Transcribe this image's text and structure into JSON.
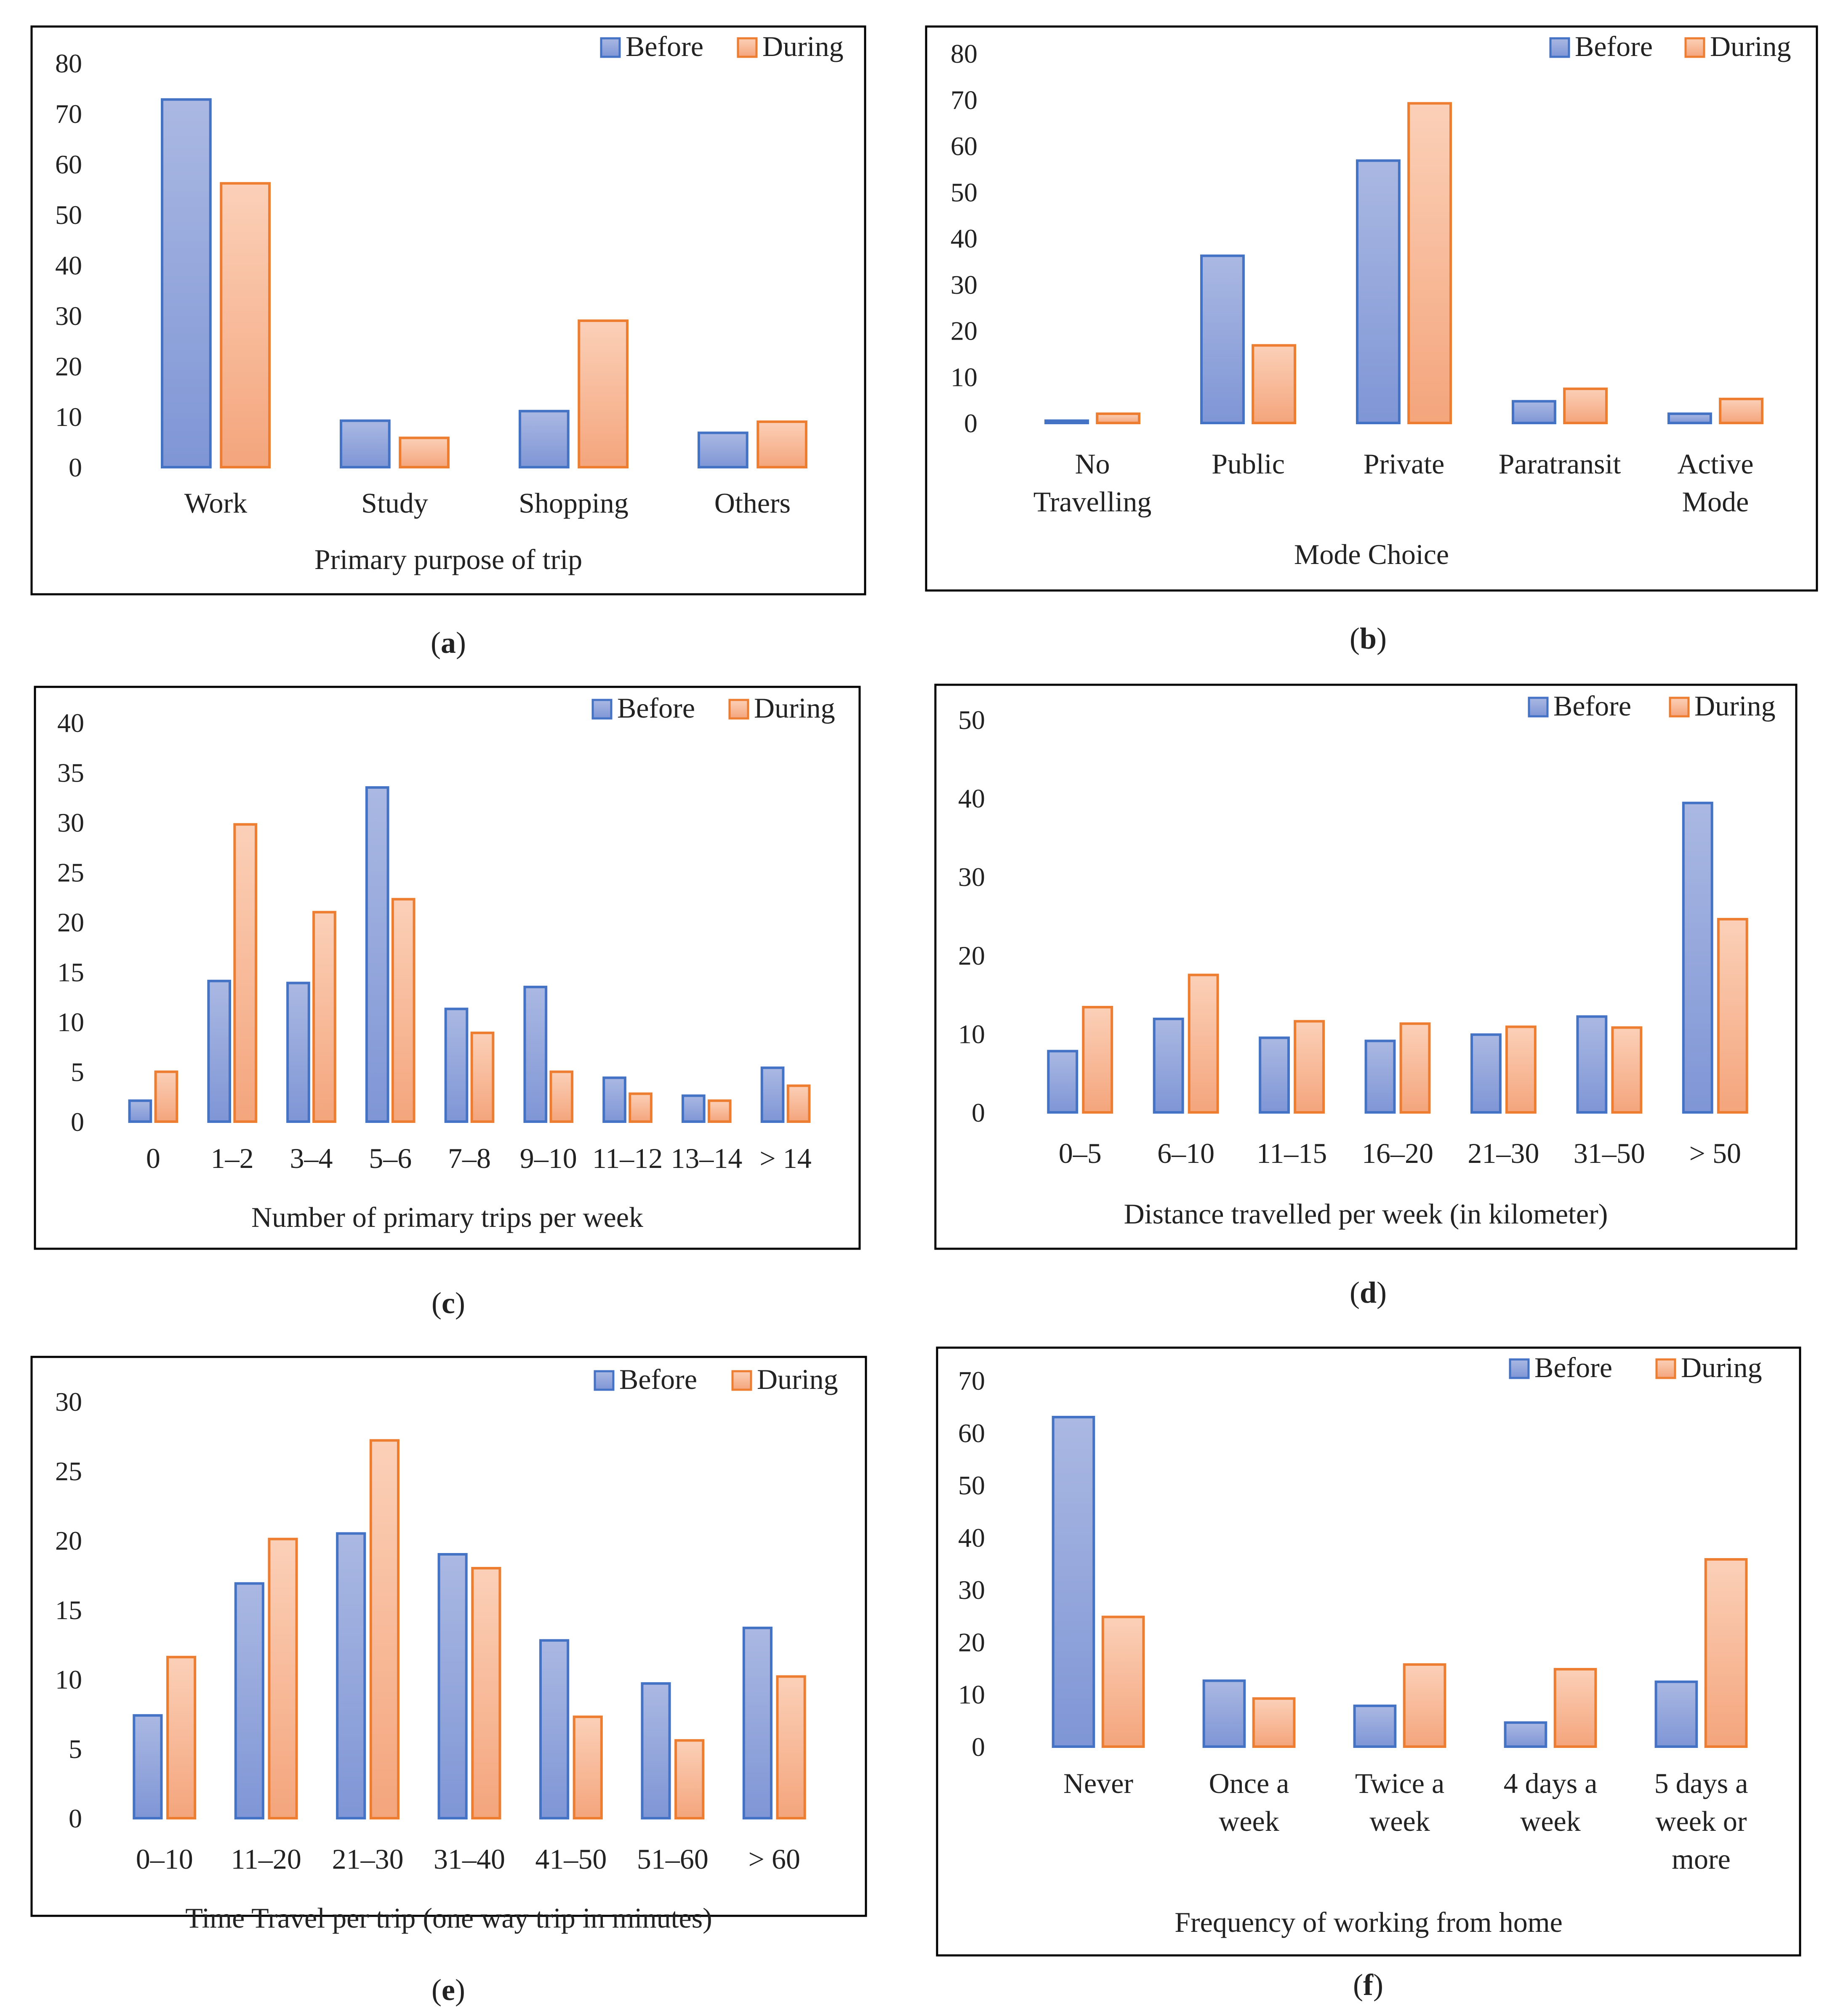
{
  "series_names": [
    "Before",
    "During"
  ],
  "colors": {
    "before_fill_top": "#aab8e2",
    "before_fill_bottom": "#7f96d6",
    "before_stroke": "#4472c4",
    "during_fill_top": "#fbd0b8",
    "during_fill_bottom": "#f4a57c",
    "during_stroke": "#ed7d31"
  },
  "chart_data": [
    {
      "type": "bar",
      "panel": "a",
      "xlabel": "Primary purpose of trip",
      "categories": [
        [
          "Work"
        ],
        [
          "Study"
        ],
        [
          "Shopping"
        ],
        [
          "Others"
        ]
      ],
      "series": [
        {
          "name": "Before",
          "values": [
            72.8,
            9.2,
            11.1,
            6.8
          ]
        },
        {
          "name": "During",
          "values": [
            56.2,
            5.8,
            29.0,
            9.0
          ]
        }
      ],
      "ylim": [
        0,
        80
      ],
      "yticks": [
        0,
        10,
        20,
        30,
        40,
        50,
        60,
        70,
        80
      ],
      "legend": "top-right"
    },
    {
      "type": "bar",
      "panel": "b",
      "xlabel": "Mode Choice",
      "categories": [
        [
          "No",
          "Travelling"
        ],
        [
          "Public"
        ],
        [
          "Private"
        ],
        [
          "Paratransit"
        ],
        [
          "Active",
          "Mode"
        ]
      ],
      "series": [
        {
          "name": "Before",
          "values": [
            0.5,
            36.2,
            56.8,
            4.7,
            2.0
          ]
        },
        {
          "name": "During",
          "values": [
            2.0,
            16.8,
            69.2,
            7.4,
            5.2
          ]
        }
      ],
      "ylim": [
        0,
        80
      ],
      "yticks": [
        0,
        10,
        20,
        30,
        40,
        50,
        60,
        70,
        80
      ],
      "legend": "top-right"
    },
    {
      "type": "bar",
      "panel": "c",
      "xlabel": "Number of primary trips per week",
      "categories": [
        [
          "0"
        ],
        [
          "1–2"
        ],
        [
          "3–4"
        ],
        [
          "5–6"
        ],
        [
          "7–8"
        ],
        [
          "9–10"
        ],
        [
          "11–12"
        ],
        [
          "13–14"
        ],
        [
          "> 14"
        ]
      ],
      "series": [
        {
          "name": "Before",
          "values": [
            2.1,
            14.1,
            13.9,
            33.5,
            11.3,
            13.5,
            4.4,
            2.6,
            5.4
          ]
        },
        {
          "name": "During",
          "values": [
            5.0,
            29.8,
            21.0,
            22.3,
            8.9,
            5.0,
            2.8,
            2.1,
            3.6
          ]
        }
      ],
      "ylim": [
        0,
        40
      ],
      "yticks": [
        0,
        5,
        10,
        15,
        20,
        25,
        30,
        35,
        40
      ],
      "legend": "top-right"
    },
    {
      "type": "bar",
      "panel": "d",
      "xlabel": "Distance travelled per week (in kilometer)",
      "categories": [
        [
          "0–5"
        ],
        [
          "6–10"
        ],
        [
          "11–15"
        ],
        [
          "16–20"
        ],
        [
          "21–30"
        ],
        [
          "31–50"
        ],
        [
          "> 50"
        ]
      ],
      "series": [
        {
          "name": "Before",
          "values": [
            7.8,
            11.9,
            9.5,
            9.1,
            9.9,
            12.2,
            39.4
          ]
        },
        {
          "name": "During",
          "values": [
            13.4,
            17.5,
            11.6,
            11.3,
            10.9,
            10.8,
            24.6
          ]
        }
      ],
      "ylim": [
        0,
        50
      ],
      "yticks": [
        0,
        10,
        20,
        30,
        40,
        50
      ],
      "legend": "top-right"
    },
    {
      "type": "bar",
      "panel": "e",
      "xlabel": "Time Travel per trip (one way trip in minutes)",
      "categories": [
        [
          "0–10"
        ],
        [
          "11–20"
        ],
        [
          "21–30"
        ],
        [
          "31–40"
        ],
        [
          "41–50"
        ],
        [
          "51–60"
        ],
        [
          "> 60"
        ]
      ],
      "series": [
        {
          "name": "Before",
          "values": [
            7.4,
            16.9,
            20.5,
            19.0,
            12.8,
            9.7,
            13.7
          ]
        },
        {
          "name": "During",
          "values": [
            11.6,
            20.1,
            27.2,
            18.0,
            7.3,
            5.6,
            10.2
          ]
        }
      ],
      "ylim": [
        0,
        30
      ],
      "yticks": [
        0,
        5,
        10,
        15,
        20,
        25,
        30
      ],
      "legend": "top-right"
    },
    {
      "type": "bar",
      "panel": "f",
      "xlabel": "Frequency of working from home",
      "categories": [
        [
          "Never"
        ],
        [
          "Once a",
          "week"
        ],
        [
          "Twice a",
          "week"
        ],
        [
          "4 days a",
          "week"
        ],
        [
          "5 days a",
          "week or",
          "more"
        ]
      ],
      "series": [
        {
          "name": "Before",
          "values": [
            63.0,
            12.6,
            7.8,
            4.6,
            12.4
          ]
        },
        {
          "name": "During",
          "values": [
            24.8,
            9.2,
            15.7,
            14.8,
            35.8
          ]
        }
      ],
      "ylim": [
        0,
        70
      ],
      "yticks": [
        0,
        10,
        20,
        30,
        40,
        50,
        60,
        70
      ],
      "legend": "top-right"
    }
  ],
  "panel_captions": [
    "(a)",
    "(b)",
    "(c)",
    "(d)",
    "(e)",
    "(f)"
  ]
}
